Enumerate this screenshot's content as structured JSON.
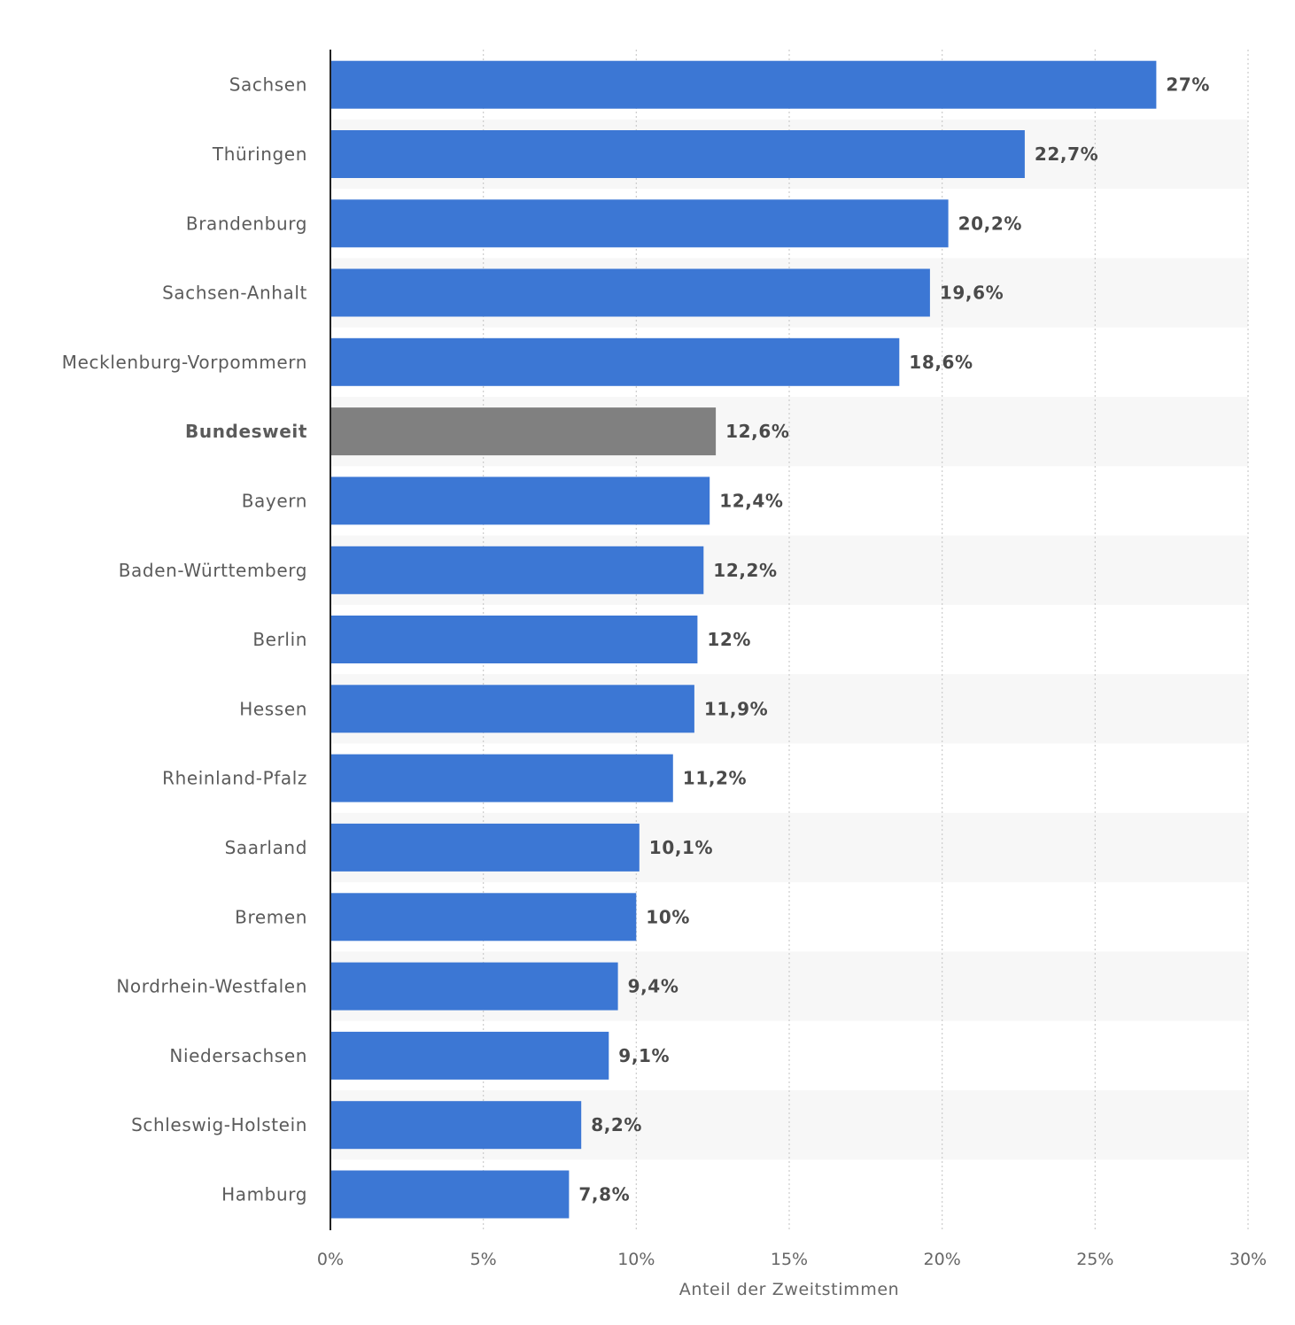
{
  "chart_data": {
    "type": "bar",
    "orientation": "horizontal",
    "categories": [
      "Sachsen",
      "Thüringen",
      "Brandenburg",
      "Sachsen-Anhalt",
      "Mecklenburg-Vorpommern",
      "Bundesweit",
      "Bayern",
      "Baden-Württemberg",
      "Berlin",
      "Hessen",
      "Rheinland-Pfalz",
      "Saarland",
      "Bremen",
      "Nordrhein-Westfalen",
      "Niedersachsen",
      "Schleswig-Holstein",
      "Hamburg"
    ],
    "values": [
      27,
      22.7,
      20.2,
      19.6,
      18.6,
      12.6,
      12.4,
      12.2,
      12,
      11.9,
      11.2,
      10.1,
      10,
      9.4,
      9.1,
      8.2,
      7.8
    ],
    "value_labels": [
      "27%",
      "22,7%",
      "20,2%",
      "19,6%",
      "18,6%",
      "12,6%",
      "12,4%",
      "12,2%",
      "12%",
      "11,9%",
      "11,2%",
      "10,1%",
      "10%",
      "9,4%",
      "9,1%",
      "8,2%",
      "7,8%"
    ],
    "highlight_category": "Bundesweit",
    "colors": {
      "bar": "#3c77d4",
      "highlight_bar": "#808080",
      "stripe": "#f7f7f7",
      "gridline": "#cccccc",
      "axis": "#222222"
    },
    "xlim": [
      0,
      30
    ],
    "xticks": [
      0,
      5,
      10,
      15,
      20,
      25,
      30
    ],
    "xtick_labels": [
      "0%",
      "5%",
      "10%",
      "15%",
      "20%",
      "25%",
      "30%"
    ],
    "xlabel": "Anteil der Zweitstimmen",
    "ylabel": "",
    "title": "",
    "grid": true
  }
}
